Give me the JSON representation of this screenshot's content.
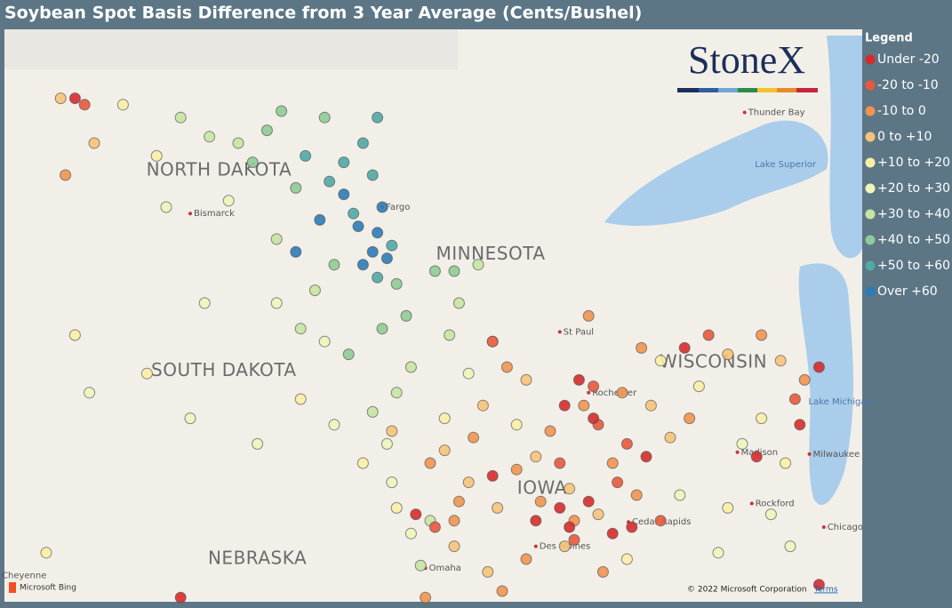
{
  "title": "Soybean Spot Basis Difference from 3 Year Average (Cents/Bushel)",
  "logo": "StoneX",
  "legend": {
    "title": "Legend",
    "items": [
      {
        "label": "Under -20",
        "color": "#d62b2b"
      },
      {
        "label": "-20 to -10",
        "color": "#e8593c"
      },
      {
        "label": "-10 to 0",
        "color": "#f09450"
      },
      {
        "label": "0 to +10",
        "color": "#f7c378"
      },
      {
        "label": "+10 to +20",
        "color": "#fbeea6"
      },
      {
        "label": "+20 to +30",
        "color": "#eef5bb"
      },
      {
        "label": "+30 to +40",
        "color": "#c6e4a2"
      },
      {
        "label": "+40 to +50",
        "color": "#8ecb95"
      },
      {
        "label": "+50 to +60",
        "color": "#4fa9a6"
      },
      {
        "label": "Over +60",
        "color": "#2c7bb8"
      }
    ]
  },
  "places": [
    {
      "name": "NORTH DAKOTA",
      "kind": "state",
      "lon": -100.2,
      "lat": 47.47
    },
    {
      "name": "MINNESOTA",
      "kind": "state",
      "lon": -94.54,
      "lat": 46.16
    },
    {
      "name": "SOUTH DAKOTA",
      "kind": "state",
      "lon": -100.1,
      "lat": 44.34
    },
    {
      "name": "WISCONSIN",
      "kind": "state",
      "lon": -89.9,
      "lat": 44.47
    },
    {
      "name": "NEBRASKA",
      "kind": "state",
      "lon": -99.4,
      "lat": 41.4
    },
    {
      "name": "IOWA",
      "kind": "state",
      "lon": -93.47,
      "lat": 42.5
    },
    {
      "name": "Bismarck",
      "kind": "city",
      "lon": -100.8,
      "lat": 46.8
    },
    {
      "name": "Fargo",
      "kind": "city",
      "lon": -96.8,
      "lat": 46.9
    },
    {
      "name": "St Paul",
      "kind": "city",
      "lon": -93.1,
      "lat": 44.95
    },
    {
      "name": "Rochester",
      "kind": "city",
      "lon": -92.5,
      "lat": 44.0
    },
    {
      "name": "Madison",
      "kind": "city",
      "lon": -89.4,
      "lat": 43.07
    },
    {
      "name": "Milwaukee",
      "kind": "city",
      "lon": -87.9,
      "lat": 43.04
    },
    {
      "name": "Rockford",
      "kind": "city",
      "lon": -89.1,
      "lat": 42.27
    },
    {
      "name": "Chicago",
      "kind": "city",
      "lon": -87.6,
      "lat": 41.9
    },
    {
      "name": "Cedar Rapids",
      "kind": "city",
      "lon": -91.67,
      "lat": 41.98
    },
    {
      "name": "Des Moines",
      "kind": "city",
      "lon": -93.6,
      "lat": 41.6
    },
    {
      "name": "Omaha",
      "kind": "city",
      "lon": -95.9,
      "lat": 41.26
    },
    {
      "name": "Cheyenne",
      "kind": "city",
      "lon": -104.8,
      "lat": 41.14
    },
    {
      "name": "Thunder Bay",
      "kind": "city",
      "lon": -89.25,
      "lat": 48.38
    },
    {
      "name": "Lake Superior",
      "kind": "water",
      "lon": -88.4,
      "lat": 47.57
    },
    {
      "name": "Lake Michigan",
      "kind": "water",
      "lon": -87.26,
      "lat": 43.86
    }
  ],
  "points": [
    [
      -96.9,
      46.5,
      9
    ],
    [
      -97.0,
      46.2,
      9
    ],
    [
      -97.2,
      46.0,
      9
    ],
    [
      -96.7,
      46.1,
      9
    ],
    [
      -97.3,
      46.6,
      9
    ],
    [
      -98.6,
      46.2,
      9
    ],
    [
      -98.1,
      46.7,
      9
    ],
    [
      -97.6,
      47.1,
      9
    ],
    [
      -96.8,
      46.9,
      9
    ],
    [
      -97.6,
      47.6,
      8
    ],
    [
      -97.9,
      47.3,
      8
    ],
    [
      -97.2,
      47.9,
      8
    ],
    [
      -96.9,
      48.3,
      8
    ],
    [
      -97.4,
      46.8,
      8
    ],
    [
      -96.6,
      46.3,
      8
    ],
    [
      -98.4,
      47.7,
      8
    ],
    [
      -97.0,
      47.4,
      8
    ],
    [
      -96.9,
      45.8,
      8
    ],
    [
      -98.0,
      48.3,
      7
    ],
    [
      -99.2,
      48.1,
      7
    ],
    [
      -98.6,
      47.2,
      7
    ],
    [
      -97.8,
      46.0,
      7
    ],
    [
      -96.5,
      45.7,
      7
    ],
    [
      -96.3,
      45.2,
      7
    ],
    [
      -95.7,
      45.9,
      7
    ],
    [
      -95.3,
      45.9,
      7
    ],
    [
      -97.5,
      44.6,
      7
    ],
    [
      -96.8,
      45.0,
      7
    ],
    [
      -99.5,
      47.6,
      7
    ],
    [
      -98.9,
      48.4,
      7
    ],
    [
      -100.4,
      48.0,
      6
    ],
    [
      -101.0,
      48.3,
      6
    ],
    [
      -99.8,
      47.9,
      6
    ],
    [
      -99.0,
      46.4,
      6
    ],
    [
      -98.2,
      45.6,
      6
    ],
    [
      -96.2,
      44.4,
      6
    ],
    [
      -95.2,
      45.4,
      6
    ],
    [
      -94.8,
      46.0,
      6
    ],
    [
      -95.4,
      44.9,
      6
    ],
    [
      -96.5,
      44.0,
      6
    ],
    [
      -97.0,
      43.7,
      6
    ],
    [
      -98.5,
      45.0,
      6
    ],
    [
      -95.8,
      42.0,
      6
    ],
    [
      -96.0,
      41.3,
      6
    ],
    [
      -101.3,
      46.9,
      5
    ],
    [
      -100.0,
      47.0,
      5
    ],
    [
      -99.0,
      45.4,
      5
    ],
    [
      -98.0,
      44.8,
      5
    ],
    [
      -97.8,
      43.5,
      5
    ],
    [
      -96.7,
      43.2,
      5
    ],
    [
      -95.0,
      44.3,
      5
    ],
    [
      -94.5,
      44.8,
      5
    ],
    [
      -100.5,
      45.4,
      5
    ],
    [
      -102.9,
      44.0,
      5
    ],
    [
      -100.8,
      43.6,
      5
    ],
    [
      -99.4,
      43.2,
      5
    ],
    [
      -96.6,
      42.6,
      5
    ],
    [
      -96.2,
      41.8,
      5
    ],
    [
      -90.6,
      42.4,
      5
    ],
    [
      -89.3,
      43.2,
      5
    ],
    [
      -88.7,
      42.1,
      5
    ],
    [
      -88.3,
      41.6,
      5
    ],
    [
      -89.8,
      41.5,
      5
    ],
    [
      -102.2,
      48.5,
      4
    ],
    [
      -101.5,
      47.7,
      4
    ],
    [
      -103.2,
      44.9,
      4
    ],
    [
      -101.7,
      44.3,
      4
    ],
    [
      -98.5,
      43.9,
      4
    ],
    [
      -97.2,
      42.9,
      4
    ],
    [
      -95.5,
      43.6,
      4
    ],
    [
      -94.0,
      43.5,
      4
    ],
    [
      -96.5,
      42.2,
      4
    ],
    [
      -103.8,
      41.5,
      4
    ],
    [
      -91.0,
      44.5,
      4
    ],
    [
      -90.2,
      44.1,
      4
    ],
    [
      -88.9,
      43.6,
      4
    ],
    [
      -91.7,
      41.4,
      4
    ],
    [
      -89.6,
      42.2,
      4
    ],
    [
      -88.4,
      42.9,
      4
    ],
    [
      -103.5,
      48.6,
      3
    ],
    [
      -102.8,
      47.9,
      3
    ],
    [
      -96.6,
      43.4,
      3
    ],
    [
      -95.5,
      43.1,
      3
    ],
    [
      -94.7,
      43.8,
      3
    ],
    [
      -93.8,
      44.2,
      3
    ],
    [
      -95.0,
      42.6,
      3
    ],
    [
      -94.4,
      42.2,
      3
    ],
    [
      -93.6,
      43.0,
      3
    ],
    [
      -92.9,
      42.5,
      3
    ],
    [
      -95.3,
      41.6,
      3
    ],
    [
      -94.6,
      41.2,
      3
    ],
    [
      -93.0,
      41.6,
      3
    ],
    [
      -90.8,
      43.3,
      3
    ],
    [
      -89.6,
      44.6,
      3
    ],
    [
      -91.2,
      43.8,
      3
    ],
    [
      -88.5,
      44.5,
      3
    ],
    [
      -92.3,
      42.1,
      3
    ],
    [
      -95.8,
      42.9,
      2
    ],
    [
      -95.2,
      42.3,
      2
    ],
    [
      -94.0,
      42.8,
      2
    ],
    [
      -93.3,
      43.4,
      2
    ],
    [
      -92.6,
      43.8,
      2
    ],
    [
      -92.0,
      42.9,
      2
    ],
    [
      -91.5,
      42.4,
      2
    ],
    [
      -93.8,
      41.4,
      2
    ],
    [
      -92.2,
      41.2,
      2
    ],
    [
      -91.4,
      44.7,
      2
    ],
    [
      -90.4,
      43.6,
      2
    ],
    [
      -88.9,
      44.9,
      2
    ],
    [
      -95.9,
      40.8,
      2
    ],
    [
      -94.3,
      40.9,
      2
    ],
    [
      -93.2,
      40.7,
      2
    ],
    [
      -92.8,
      42.0,
      2
    ],
    [
      -94.9,
      43.3,
      2
    ],
    [
      -94.2,
      44.4,
      2
    ],
    [
      -92.5,
      45.2,
      2
    ],
    [
      -103.4,
      47.4,
      2
    ],
    [
      -88.0,
      44.2,
      2
    ],
    [
      -91.8,
      44.0,
      2
    ],
    [
      -95.3,
      42.0,
      2
    ],
    [
      -93.5,
      42.3,
      2
    ],
    [
      -103.0,
      48.5,
      1
    ],
    [
      -94.5,
      44.8,
      1
    ],
    [
      -92.4,
      44.1,
      1
    ],
    [
      -91.7,
      43.2,
      1
    ],
    [
      -91.0,
      42.0,
      1
    ],
    [
      -93.1,
      42.9,
      1
    ],
    [
      -92.8,
      41.7,
      1
    ],
    [
      -90.0,
      44.9,
      1
    ],
    [
      -88.2,
      43.9,
      1
    ],
    [
      -91.9,
      42.6,
      1
    ],
    [
      -95.7,
      41.9,
      1
    ],
    [
      -92.3,
      43.5,
      1
    ],
    [
      -103.2,
      48.6,
      0
    ],
    [
      -93.6,
      42.0,
      0
    ],
    [
      -92.9,
      41.9,
      0
    ],
    [
      -92.5,
      42.3,
      0
    ],
    [
      -92.0,
      41.8,
      0
    ],
    [
      -91.6,
      41.9,
      0
    ],
    [
      -93.1,
      42.2,
      0
    ],
    [
      -92.7,
      44.2,
      0
    ],
    [
      -93.0,
      43.8,
      0
    ],
    [
      -92.4,
      43.6,
      0
    ],
    [
      -94.5,
      42.7,
      0
    ],
    [
      -91.3,
      43.0,
      0
    ],
    [
      -90.5,
      44.7,
      0
    ],
    [
      -89.0,
      43.0,
      0
    ],
    [
      -88.1,
      43.5,
      0
    ],
    [
      -87.7,
      44.4,
      0
    ],
    [
      -96.1,
      42.1,
      0
    ],
    [
      -87.7,
      41.0,
      0
    ],
    [
      -101.0,
      40.8,
      0
    ]
  ],
  "attribution": {
    "provider": "Microsoft Bing",
    "copyright": "© 2022 Microsoft Corporation",
    "terms": "Terms"
  }
}
